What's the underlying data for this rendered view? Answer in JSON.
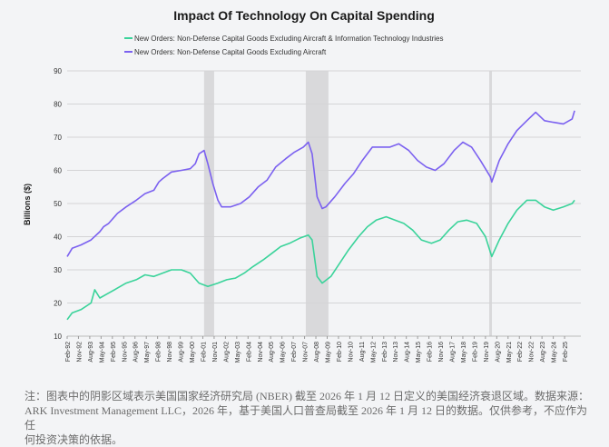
{
  "chart_data": {
    "type": "line",
    "title": "Impact Of Technology On Capital Spending",
    "xlabel": "",
    "ylabel": "Billions ($)",
    "ylim": [
      10,
      90
    ],
    "yticks": [
      10,
      20,
      30,
      40,
      50,
      60,
      70,
      80,
      90
    ],
    "grid": true,
    "legend": "top",
    "xticks": [
      "Feb-92",
      "Nov-92",
      "Aug-93",
      "May-94",
      "Feb-95",
      "Nov-95",
      "Aug-96",
      "May-97",
      "Feb-98",
      "Nov-98",
      "Aug-99",
      "May-00",
      "Feb-01",
      "Nov-01",
      "Aug-02",
      "May-03",
      "Feb-04",
      "Nov-04",
      "Aug-05",
      "May-06",
      "Feb-07",
      "Nov-07",
      "Aug-08",
      "May-09",
      "Feb-10",
      "Nov-10",
      "Aug-11",
      "May-12",
      "Feb-13",
      "Nov-13",
      "Aug-14",
      "May-15",
      "Feb-16",
      "Nov-16",
      "Aug-17",
      "May-18",
      "Feb-19",
      "Nov-19",
      "Aug-20",
      "May-21",
      "Feb-22",
      "Nov-22",
      "Aug-23",
      "May-24",
      "Feb-25"
    ],
    "recessions": [
      [
        "2001-03",
        "2001-11"
      ],
      [
        "2007-12",
        "2009-06"
      ],
      [
        "2020-02",
        "2020-04"
      ]
    ],
    "series": [
      {
        "name": "New Orders: Non-Defense Capital Goods Excluding Aircraft & Information Technology Industries",
        "color": "#3ad39a",
        "points": [
          [
            "1992-02",
            15
          ],
          [
            "1992-06",
            17
          ],
          [
            "1993-01",
            18
          ],
          [
            "1993-09",
            20
          ],
          [
            "1993-12",
            24
          ],
          [
            "1994-04",
            21.5
          ],
          [
            "1994-11",
            23
          ],
          [
            "1995-06",
            24.5
          ],
          [
            "1996-01",
            26
          ],
          [
            "1996-09",
            27
          ],
          [
            "1997-04",
            28.5
          ],
          [
            "1997-11",
            28
          ],
          [
            "1998-06",
            29
          ],
          [
            "1999-01",
            30
          ],
          [
            "1999-09",
            30
          ],
          [
            "2000-04",
            29
          ],
          [
            "2000-11",
            26
          ],
          [
            "2001-06",
            25
          ],
          [
            "2002-02",
            26
          ],
          [
            "2002-09",
            27
          ],
          [
            "2003-04",
            27.5
          ],
          [
            "2003-11",
            29
          ],
          [
            "2004-06",
            31
          ],
          [
            "2005-02",
            33
          ],
          [
            "2005-09",
            35
          ],
          [
            "2006-04",
            37
          ],
          [
            "2006-11",
            38
          ],
          [
            "2007-07",
            39.5
          ],
          [
            "2008-02",
            40.5
          ],
          [
            "2008-05",
            39
          ],
          [
            "2008-09",
            28
          ],
          [
            "2009-01",
            26
          ],
          [
            "2009-08",
            28
          ],
          [
            "2010-03",
            32
          ],
          [
            "2010-10",
            36
          ],
          [
            "2011-06",
            40
          ],
          [
            "2012-01",
            43
          ],
          [
            "2012-08",
            45
          ],
          [
            "2013-04",
            46
          ],
          [
            "2013-11",
            45
          ],
          [
            "2014-06",
            44
          ],
          [
            "2015-01",
            42
          ],
          [
            "2015-08",
            39
          ],
          [
            "2016-04",
            38
          ],
          [
            "2016-11",
            39
          ],
          [
            "2017-06",
            42
          ],
          [
            "2018-01",
            44.5
          ],
          [
            "2018-08",
            45
          ],
          [
            "2019-04",
            44
          ],
          [
            "2019-11",
            40
          ],
          [
            "2020-04",
            34
          ],
          [
            "2020-10",
            39
          ],
          [
            "2021-05",
            44
          ],
          [
            "2021-12",
            48
          ],
          [
            "2022-08",
            51
          ],
          [
            "2023-03",
            51
          ],
          [
            "2023-10",
            49
          ],
          [
            "2024-05",
            48
          ],
          [
            "2025-01",
            49
          ],
          [
            "2025-08",
            50
          ],
          [
            "2025-10",
            51
          ]
        ]
      },
      {
        "name": "New Orders: Non-Defense Capital Goods Excluding Aircraft",
        "color": "#7b61f0",
        "points": [
          [
            "1992-02",
            34
          ],
          [
            "1992-06",
            36.5
          ],
          [
            "1993-01",
            37.5
          ],
          [
            "1993-09",
            39
          ],
          [
            "1994-04",
            41.5
          ],
          [
            "1994-07",
            43
          ],
          [
            "1994-11",
            44
          ],
          [
            "1995-06",
            47
          ],
          [
            "1996-01",
            49
          ],
          [
            "1996-09",
            51
          ],
          [
            "1997-04",
            53
          ],
          [
            "1997-11",
            54
          ],
          [
            "1998-03",
            56.5
          ],
          [
            "1998-06",
            57.5
          ],
          [
            "1999-01",
            59.5
          ],
          [
            "1999-09",
            60
          ],
          [
            "2000-04",
            60.5
          ],
          [
            "2000-08",
            62
          ],
          [
            "2000-11",
            65
          ],
          [
            "2001-03",
            66
          ],
          [
            "2001-06",
            62
          ],
          [
            "2001-10",
            56
          ],
          [
            "2002-02",
            51
          ],
          [
            "2002-05",
            49
          ],
          [
            "2002-12",
            49
          ],
          [
            "2003-08",
            50
          ],
          [
            "2004-03",
            52
          ],
          [
            "2004-10",
            55
          ],
          [
            "2005-05",
            57
          ],
          [
            "2005-12",
            61
          ],
          [
            "2006-08",
            63.5
          ],
          [
            "2007-03",
            65.5
          ],
          [
            "2007-10",
            67
          ],
          [
            "2008-02",
            68.5
          ],
          [
            "2008-05",
            65
          ],
          [
            "2008-09",
            52
          ],
          [
            "2009-01",
            48.5
          ],
          [
            "2009-04",
            49
          ],
          [
            "2009-11",
            52
          ],
          [
            "2010-07",
            56
          ],
          [
            "2011-02",
            59
          ],
          [
            "2011-09",
            63
          ],
          [
            "2012-05",
            67
          ],
          [
            "2012-12",
            67
          ],
          [
            "2013-07",
            67
          ],
          [
            "2014-02",
            68
          ],
          [
            "2014-10",
            66
          ],
          [
            "2015-05",
            63
          ],
          [
            "2015-12",
            61
          ],
          [
            "2016-07",
            60
          ],
          [
            "2017-02",
            62
          ],
          [
            "2017-10",
            66
          ],
          [
            "2018-05",
            68.5
          ],
          [
            "2018-12",
            67
          ],
          [
            "2019-07",
            63
          ],
          [
            "2020-03",
            58
          ],
          [
            "2020-04",
            56.5
          ],
          [
            "2020-10",
            63
          ],
          [
            "2021-05",
            68
          ],
          [
            "2021-12",
            72
          ],
          [
            "2022-08",
            75
          ],
          [
            "2023-03",
            77.5
          ],
          [
            "2023-10",
            75
          ],
          [
            "2024-05",
            74.5
          ],
          [
            "2025-01",
            74
          ],
          [
            "2025-08",
            75.5
          ],
          [
            "2025-10",
            78
          ]
        ]
      }
    ]
  },
  "footnote": {
    "line1": "注：图表中的阴影区域表示美国国家经济研究局 (NBER) 截至 2026 年 1 月 12 日定义的美国经济衰退区域。数据来源：",
    "line2": "ARK Investment Management LLC，2026 年，基于美国人口普查局截至 2026 年 1 月 12 日的数据。仅供参考，不应作为任",
    "line3": "何投资决策的依据。"
  }
}
